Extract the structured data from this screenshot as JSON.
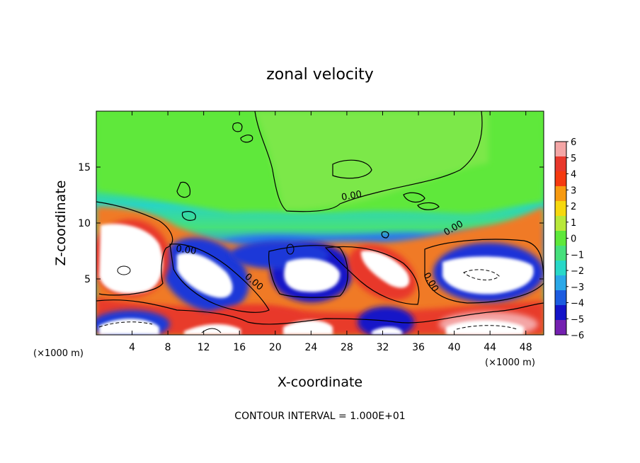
{
  "chart_data": {
    "type": "heatmap",
    "title": "zonal velocity",
    "xlabel": "X-coordinate",
    "ylabel": "Z-coordinate",
    "x_unit_label": "(×1000 m)",
    "z_unit_label": "(×1000 m)",
    "x_ticks": [
      "4",
      "8",
      "12",
      "16",
      "20",
      "24",
      "28",
      "32",
      "36",
      "40",
      "44",
      "48"
    ],
    "y_ticks": [
      "5",
      "10",
      "15"
    ],
    "xlim": [
      0,
      50
    ],
    "ylim": [
      0,
      20
    ],
    "colorbar": {
      "ticks": [
        "6",
        "5",
        "4",
        "3",
        "2",
        "1",
        "0",
        "−1",
        "−2",
        "−3",
        "−4",
        "−5",
        "−6"
      ],
      "range": [
        -6,
        6
      ],
      "colors": [
        "#f4a6a6",
        "#e8382c",
        "#f53a10",
        "#f79a10",
        "#f6d80e",
        "#b8e83a",
        "#5ee83a",
        "#46e07c",
        "#28d8c8",
        "#2aa8e8",
        "#1c5ce0",
        "#1414c8",
        "#7420b0"
      ]
    },
    "contour_labels": [
      "0.00",
      "0.00",
      "0.00",
      "0.00",
      "0.00"
    ],
    "contour_interval": "CONTOUR INTERVAL = 1.000E+01"
  }
}
